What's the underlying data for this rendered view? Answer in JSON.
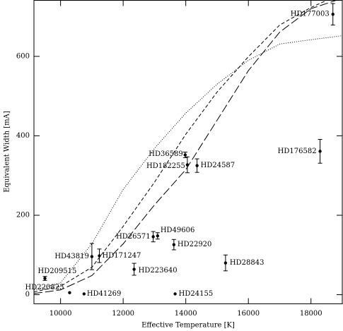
{
  "chart_data": {
    "type": "scatter",
    "xlabel": "Effective Temperature [K]",
    "ylabel": "Equivalent Width [mA]",
    "xlim": [
      9150,
      19000
    ],
    "ylim": [
      -23,
      741
    ],
    "xticks": [
      10000,
      12000,
      14000,
      16000,
      18000
    ],
    "yticks": [
      0,
      200,
      400,
      600
    ],
    "color": "#000000",
    "series": [
      {
        "labels": [
          "HD177003",
          "HD176582",
          "HD36589",
          "HD182255",
          "HD24587",
          "HD26571",
          "HD49606",
          "HD22920",
          "HD28843",
          "HD43819",
          "HD171247",
          "HD223640",
          "HD209515",
          "HD220825",
          "HD41269",
          "HD24155"
        ],
        "x": [
          18700,
          18290,
          13980,
          14050,
          14360,
          12960,
          13100,
          13620,
          15270,
          11000,
          11240,
          12350,
          9500,
          10290,
          10750,
          13660
        ],
        "values": [
          706,
          361,
          352,
          327,
          325,
          146,
          148,
          126,
          80,
          96,
          98,
          64,
          41,
          5,
          2,
          2
        ],
        "errors": [
          27,
          30,
          7,
          20,
          17,
          13,
          8,
          13,
          20,
          33,
          17,
          15,
          5,
          null,
          null,
          null
        ]
      }
    ],
    "curves": [
      {
        "dash": "1 2",
        "x": [
          9150,
          10000,
          11000,
          12000,
          13000,
          14000,
          15000,
          16000,
          17000,
          18000,
          19000
        ],
        "values": [
          12,
          30,
          128,
          265,
          368,
          457,
          530,
          590,
          631,
          642,
          652
        ]
      },
      {
        "dash": "5 3",
        "x": [
          9150,
          10000,
          11000,
          12000,
          13000,
          14000,
          15000,
          16000,
          17000,
          18000,
          18500
        ],
        "values": [
          7,
          21,
          69,
          172,
          283,
          404,
          510,
          599,
          679,
          723,
          741
        ]
      },
      {
        "dash": "12 4",
        "x": [
          9150,
          10000,
          11000,
          12000,
          13000,
          14000,
          15000,
          16000,
          17000,
          18000,
          18800
        ],
        "values": [
          3,
          12,
          48,
          128,
          226,
          315,
          439,
          564,
          661,
          720,
          741
        ]
      }
    ]
  }
}
